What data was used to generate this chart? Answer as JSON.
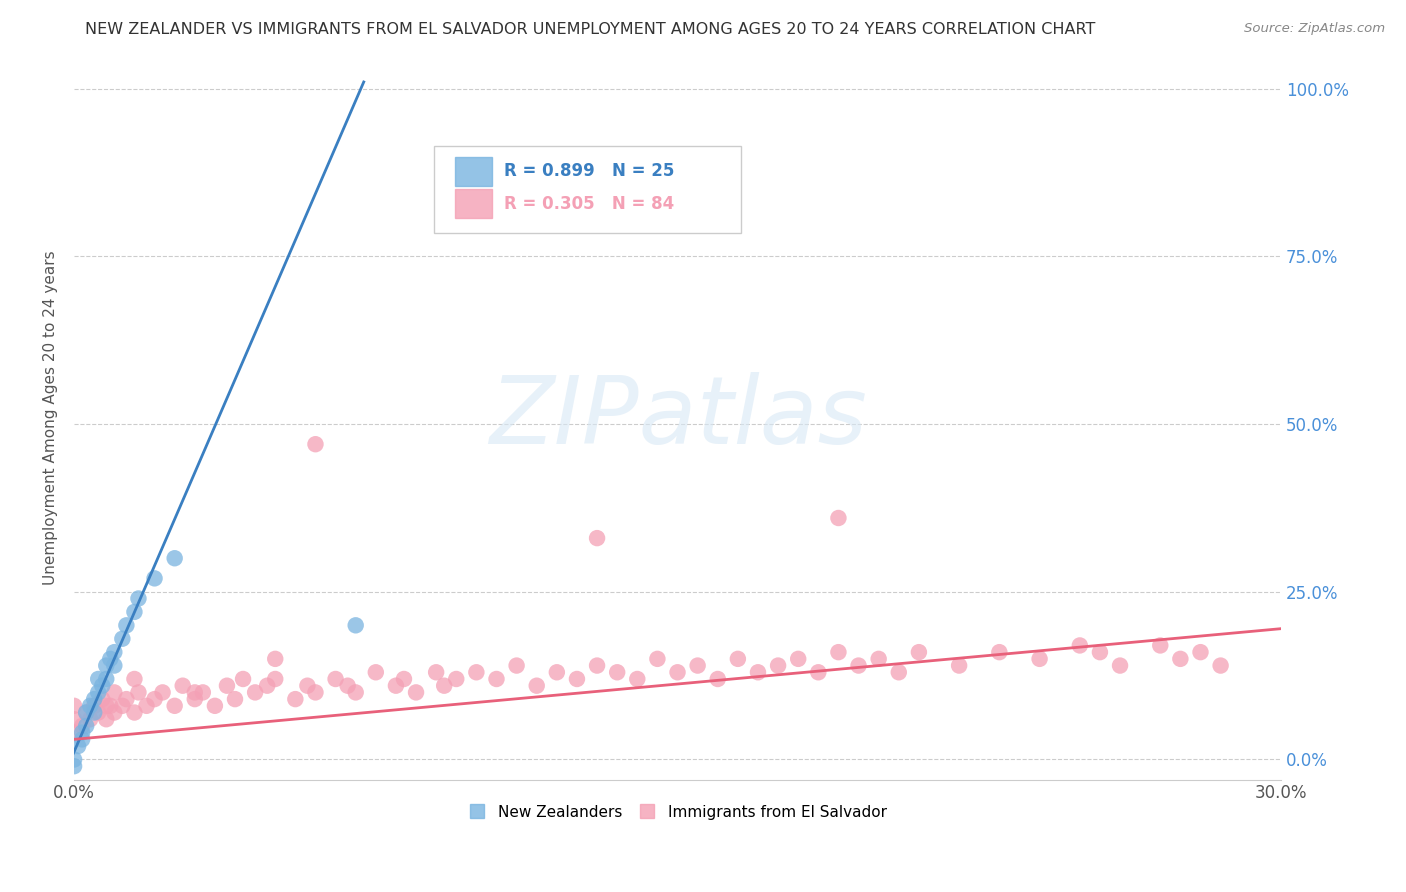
{
  "title": "NEW ZEALANDER VS IMMIGRANTS FROM EL SALVADOR UNEMPLOYMENT AMONG AGES 20 TO 24 YEARS CORRELATION CHART",
  "source": "Source: ZipAtlas.com",
  "xlim": [
    0.0,
    0.3
  ],
  "ylim": [
    -0.03,
    1.05
  ],
  "nz_R": 0.899,
  "nz_N": 25,
  "sv_R": 0.305,
  "sv_N": 84,
  "nz_color": "#7ab4e0",
  "sv_color": "#f4a0b5",
  "nz_line_color": "#3a7fc1",
  "sv_line_color": "#e8607a",
  "watermark": "ZIPatlas",
  "background_color": "#ffffff",
  "nz_scatter_x": [
    0.0,
    0.0,
    0.001,
    0.002,
    0.002,
    0.003,
    0.003,
    0.004,
    0.005,
    0.005,
    0.006,
    0.006,
    0.007,
    0.008,
    0.008,
    0.009,
    0.01,
    0.01,
    0.012,
    0.013,
    0.015,
    0.016,
    0.02,
    0.025,
    0.07
  ],
  "nz_scatter_y": [
    -0.01,
    0.0,
    0.02,
    0.03,
    0.04,
    0.05,
    0.07,
    0.08,
    0.07,
    0.09,
    0.1,
    0.12,
    0.11,
    0.14,
    0.12,
    0.15,
    0.14,
    0.16,
    0.18,
    0.2,
    0.22,
    0.24,
    0.27,
    0.3,
    0.2
  ],
  "nz_line_x0": -0.003,
  "nz_line_x1": 0.072,
  "nz_line_y0": -0.03,
  "nz_line_y1": 1.01,
  "sv_line_x0": 0.0,
  "sv_line_x1": 0.3,
  "sv_line_y0": 0.03,
  "sv_line_y1": 0.195,
  "sv_scatter_x": [
    0.0,
    0.0,
    0.0,
    0.002,
    0.003,
    0.004,
    0.005,
    0.006,
    0.007,
    0.008,
    0.009,
    0.01,
    0.01,
    0.012,
    0.013,
    0.015,
    0.016,
    0.018,
    0.02,
    0.022,
    0.025,
    0.027,
    0.03,
    0.032,
    0.035,
    0.038,
    0.04,
    0.042,
    0.045,
    0.048,
    0.05,
    0.055,
    0.058,
    0.06,
    0.065,
    0.068,
    0.07,
    0.075,
    0.08,
    0.082,
    0.085,
    0.09,
    0.092,
    0.095,
    0.1,
    0.105,
    0.11,
    0.115,
    0.12,
    0.125,
    0.13,
    0.135,
    0.14,
    0.145,
    0.15,
    0.155,
    0.16,
    0.165,
    0.17,
    0.175,
    0.18,
    0.185,
    0.19,
    0.195,
    0.2,
    0.205,
    0.21,
    0.22,
    0.23,
    0.24,
    0.25,
    0.255,
    0.26,
    0.27,
    0.275,
    0.28,
    0.285,
    0.19,
    0.13,
    0.06,
    0.05,
    0.03,
    0.015,
    0.008
  ],
  "sv_scatter_y": [
    0.04,
    0.06,
    0.08,
    0.05,
    0.07,
    0.06,
    0.08,
    0.07,
    0.09,
    0.06,
    0.08,
    0.07,
    0.1,
    0.08,
    0.09,
    0.07,
    0.1,
    0.08,
    0.09,
    0.1,
    0.08,
    0.11,
    0.09,
    0.1,
    0.08,
    0.11,
    0.09,
    0.12,
    0.1,
    0.11,
    0.12,
    0.09,
    0.11,
    0.1,
    0.12,
    0.11,
    0.1,
    0.13,
    0.11,
    0.12,
    0.1,
    0.13,
    0.11,
    0.12,
    0.13,
    0.12,
    0.14,
    0.11,
    0.13,
    0.12,
    0.14,
    0.13,
    0.12,
    0.15,
    0.13,
    0.14,
    0.12,
    0.15,
    0.13,
    0.14,
    0.15,
    0.13,
    0.16,
    0.14,
    0.15,
    0.13,
    0.16,
    0.14,
    0.16,
    0.15,
    0.17,
    0.16,
    0.14,
    0.17,
    0.15,
    0.16,
    0.14,
    0.36,
    0.33,
    0.47,
    0.15,
    0.1,
    0.12,
    0.08
  ]
}
